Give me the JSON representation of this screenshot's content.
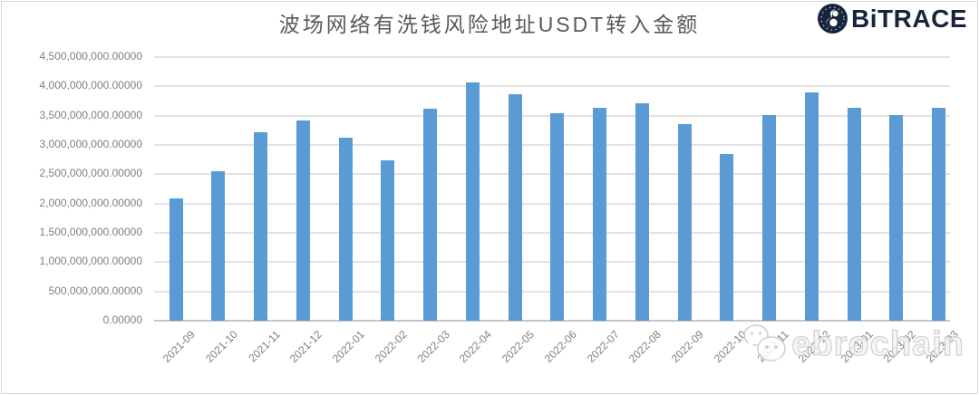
{
  "logo": {
    "text": "BiTRACE",
    "color": "#16253c",
    "icon": "globe-icon"
  },
  "watermark": {
    "text": "ebrochain",
    "icon": "wechat-icon",
    "color": "#c9c9c9"
  },
  "chart_data": {
    "type": "bar",
    "title": "波场网络有洗钱风险地址USDT转入金额",
    "xlabel": "",
    "ylabel": "",
    "categories": [
      "2021-09",
      "2021-10",
      "2021-11",
      "2021-12",
      "2022-01",
      "2022-02",
      "2022-03",
      "2022-04",
      "2022-05",
      "2022-06",
      "2022-07",
      "2022-08",
      "2022-09",
      "2022-10",
      "2022-11",
      "2022-12",
      "2023-01",
      "2023-02",
      "2023-03"
    ],
    "values": [
      2080000000,
      2550000000,
      3210000000,
      3410000000,
      3130000000,
      2730000000,
      3620000000,
      4070000000,
      3870000000,
      3540000000,
      3630000000,
      3710000000,
      3360000000,
      2850000000,
      3510000000,
      3900000000,
      3630000000,
      3510000000,
      3640000000
    ],
    "ylim": [
      0,
      4500000000
    ],
    "ytick_step": 500000000,
    "ytick_labels": [
      "0.00000",
      "500,000,000.00000",
      "1,000,000,000.00000",
      "1,500,000,000.00000",
      "2,000,000,000.00000",
      "2,500,000,000.00000",
      "3,000,000,000.00000",
      "3,500,000,000.00000",
      "4,000,000,000.00000",
      "4,500,000,000.00000"
    ],
    "grid": true,
    "legend": false,
    "bar_color": "#5b9bd5",
    "gridline_color": "#e3e3e3",
    "axis_line_color": "#c6c6c6",
    "tick_label_color": "#7f7f7f",
    "title_color": "#595959"
  }
}
